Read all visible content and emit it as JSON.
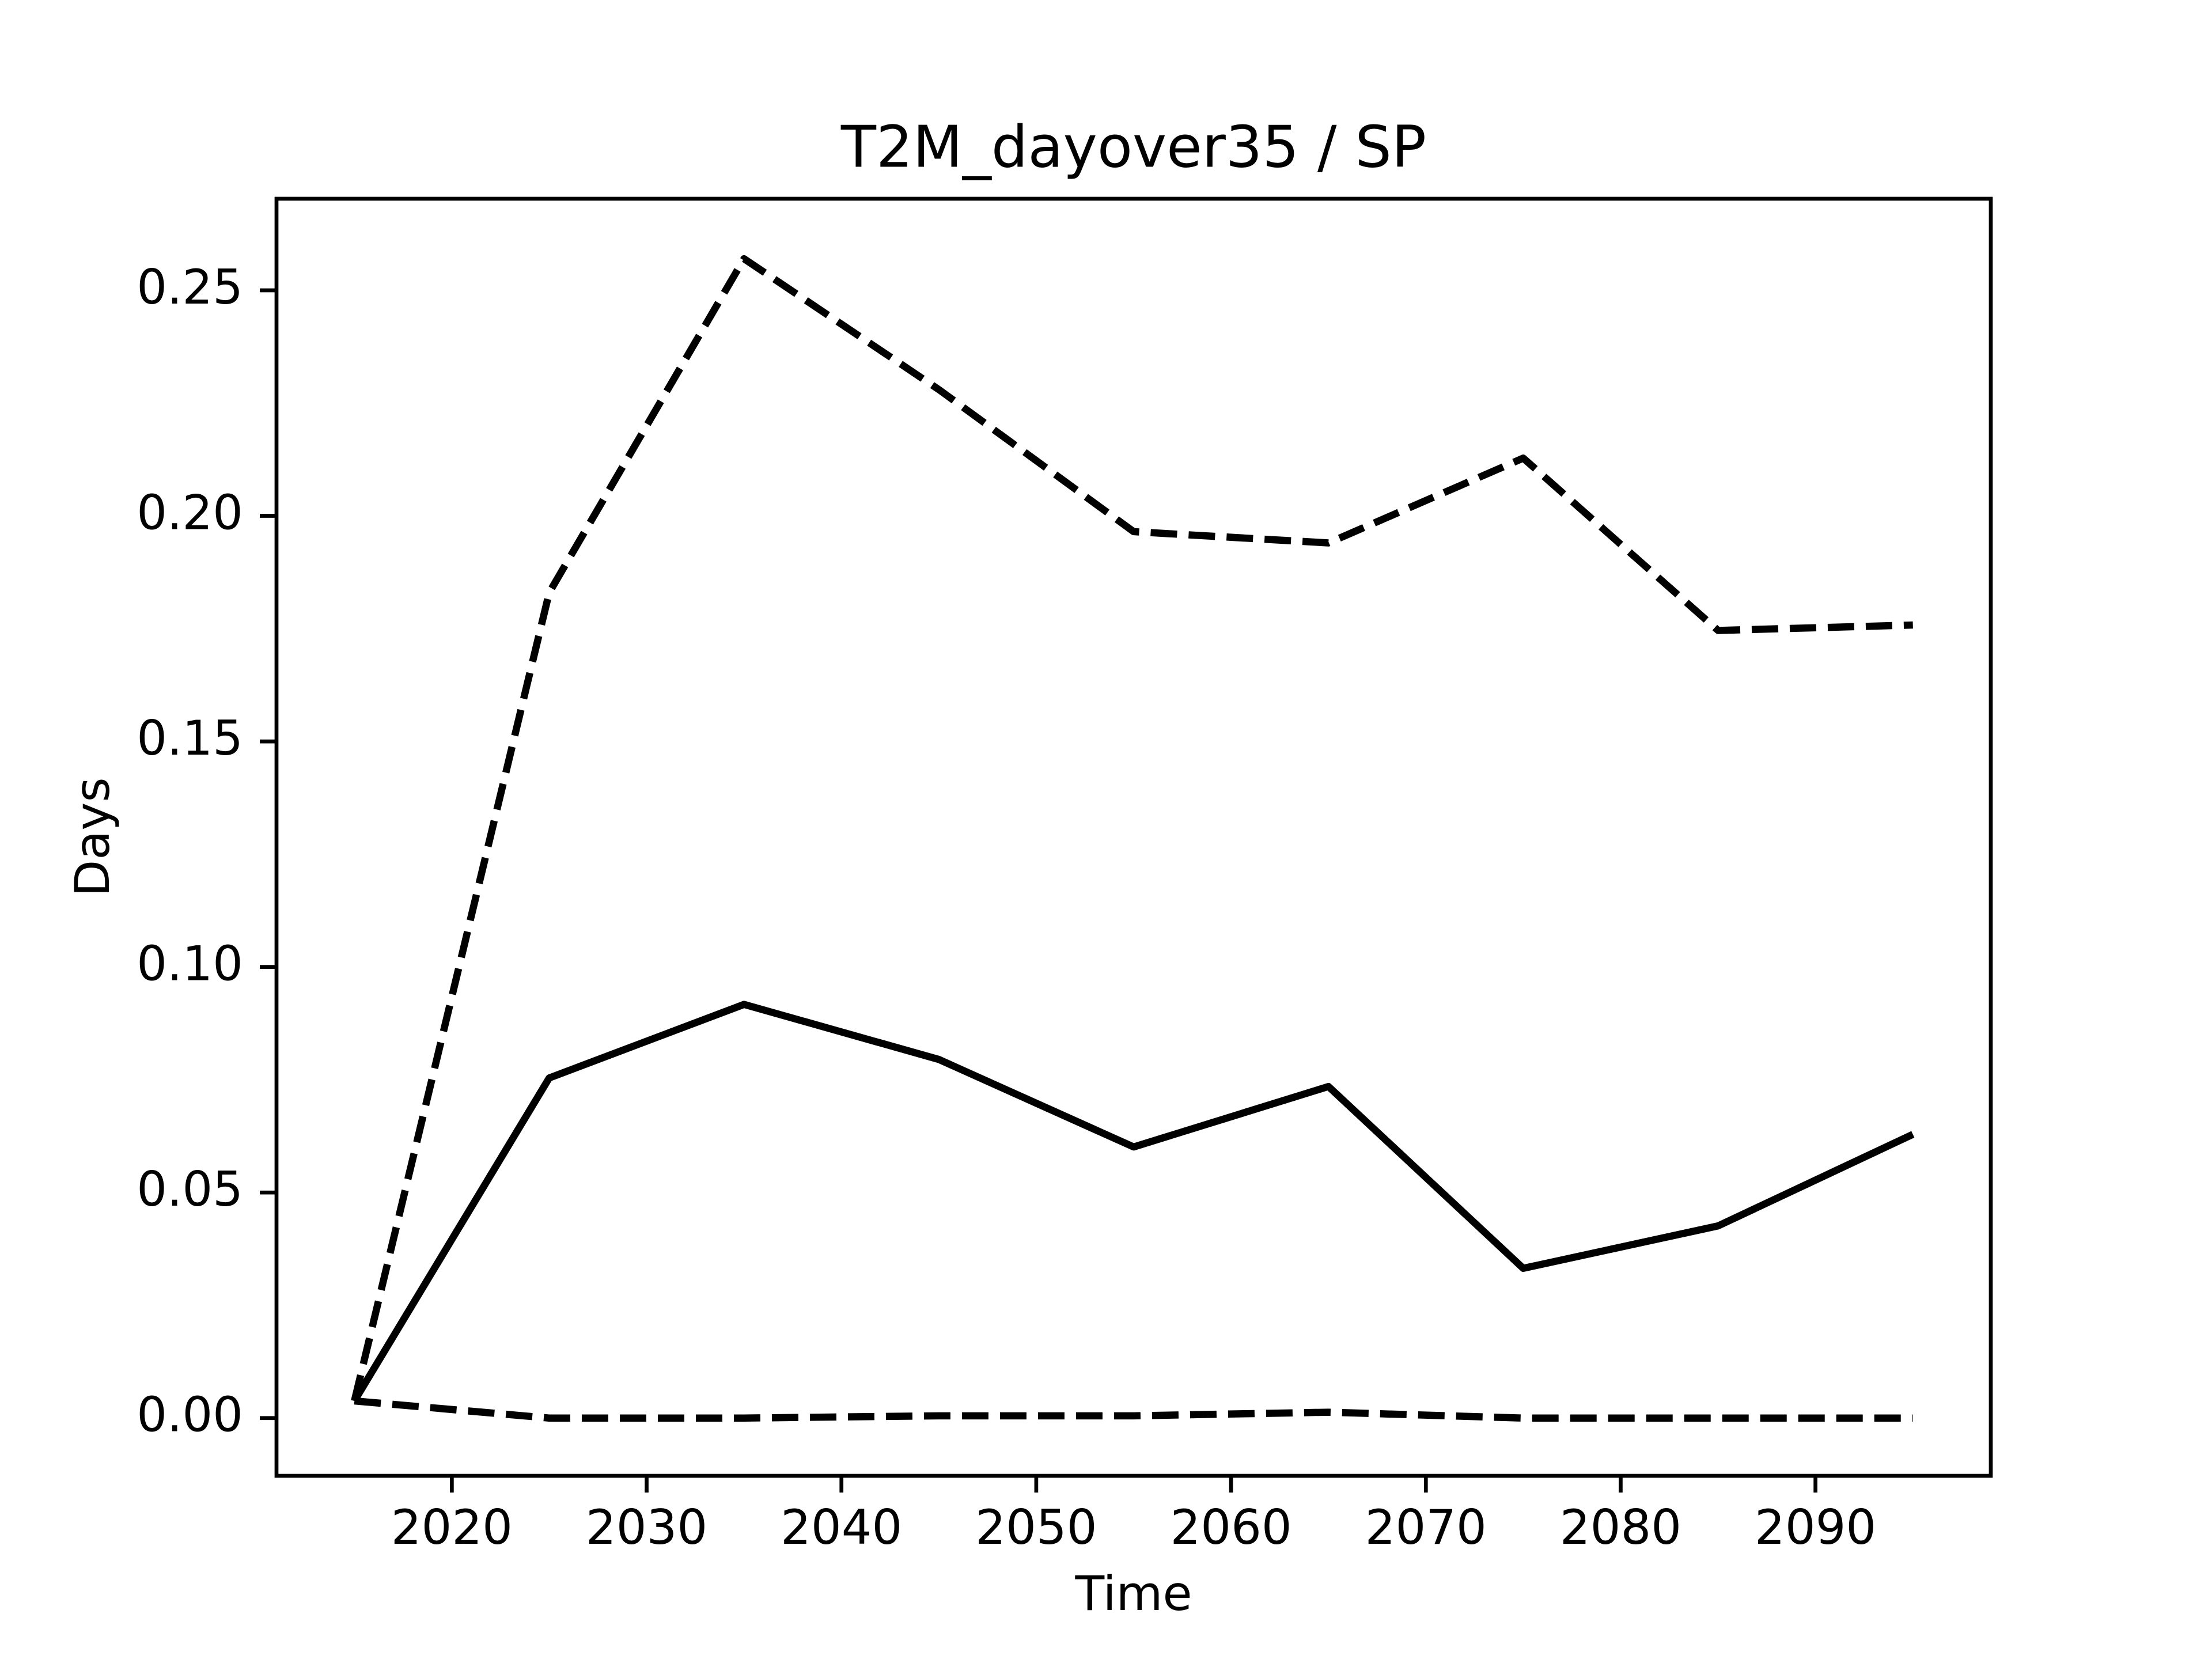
{
  "chart_data": {
    "type": "line",
    "title": "T2M_dayover35 / SP",
    "xlabel": "Time",
    "ylabel": "Days",
    "x": [
      2015,
      2025,
      2035,
      2045,
      2055,
      2065,
      2075,
      2085,
      2095
    ],
    "series": [
      {
        "color": "#000000",
        "dash": "dashed",
        "values": [
          0.0038,
          0.183,
          0.257,
          0.228,
          0.1965,
          0.194,
          0.2128,
          0.1746,
          0.1758
        ]
      },
      {
        "color": "#000000",
        "dash": "solid",
        "values": [
          0.0038,
          0.0754,
          0.0917,
          0.0795,
          0.0601,
          0.0735,
          0.0332,
          0.0426,
          0.0629
        ]
      },
      {
        "color": "#000000",
        "dash": "dashed",
        "values": [
          0.0038,
          0.0,
          0.0,
          0.0005,
          0.0005,
          0.0013,
          0.0,
          0.0,
          0.0
        ]
      }
    ],
    "xlim": [
      2011.0,
      2099.0
    ],
    "xticks": [
      2020,
      2030,
      2040,
      2050,
      2060,
      2070,
      2080,
      2090
    ],
    "ylim": [
      -0.0128,
      0.2703
    ],
    "yticks": [
      {
        "value": 0.0,
        "label": "0.00"
      },
      0.05,
      {
        "value": 0.1,
        "label": "0.10"
      },
      0.15,
      {
        "value": 0.2,
        "label": "0.20"
      },
      0.25
    ],
    "grid": false
  }
}
